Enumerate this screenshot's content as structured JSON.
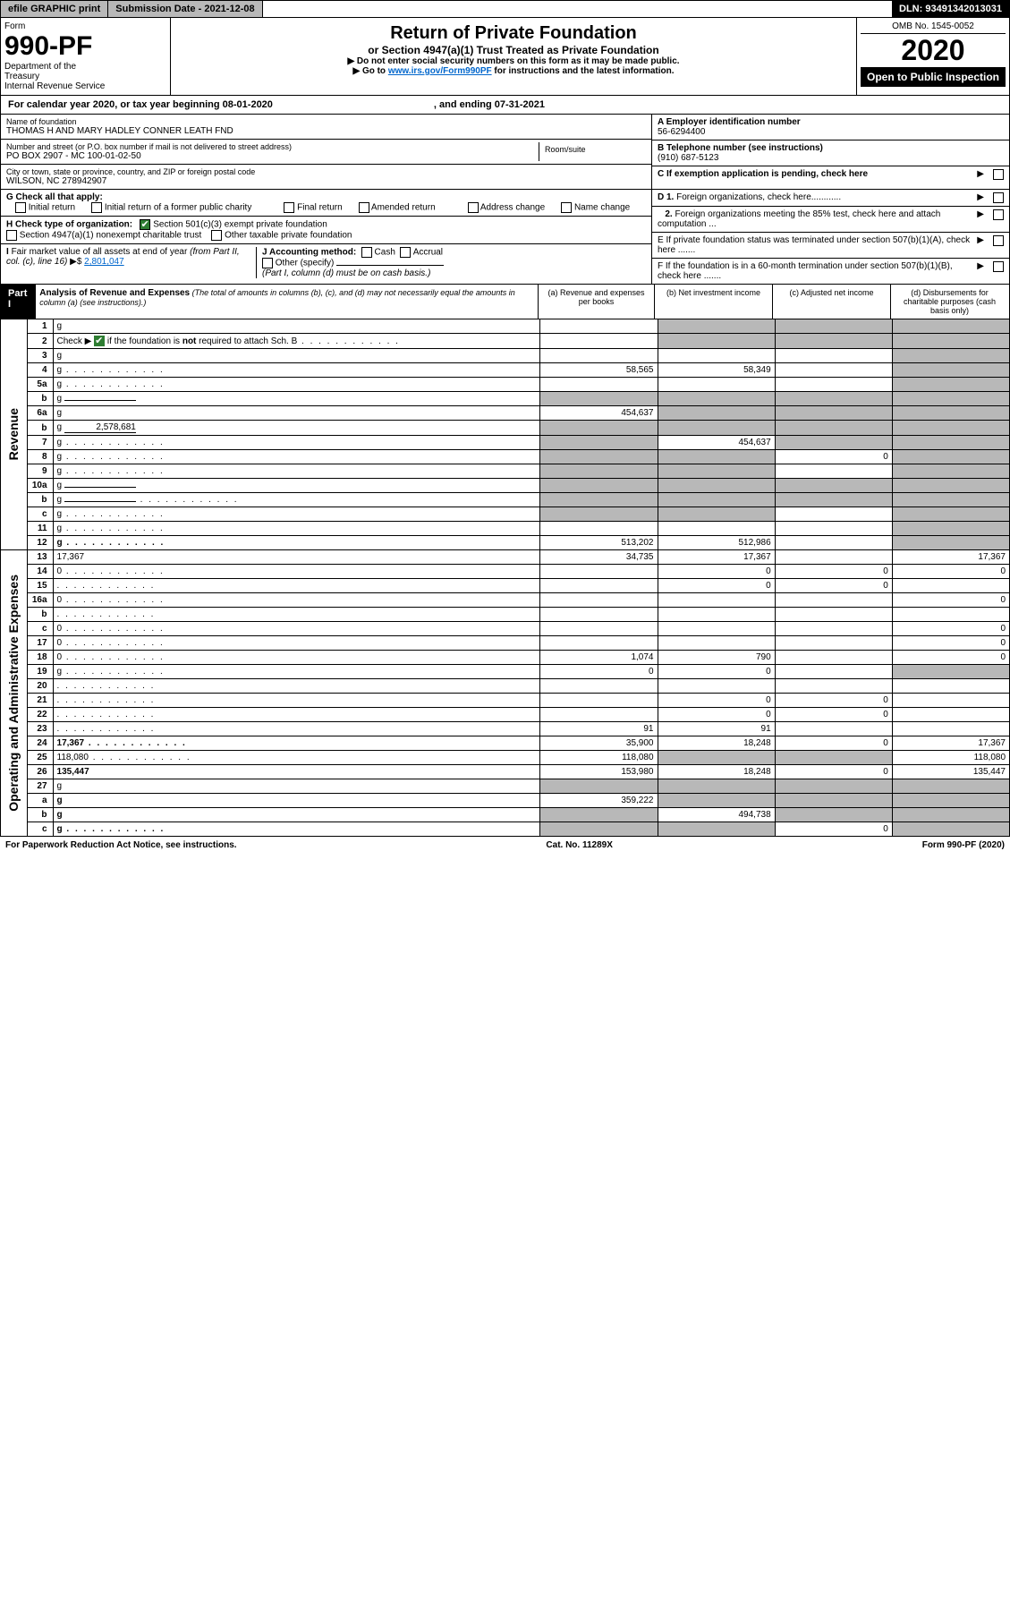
{
  "topbar": {
    "efile": "efile GRAPHIC print",
    "subdate_label": "Submission Date - ",
    "subdate": "2021-12-08",
    "dln": "DLN: 93491342013031"
  },
  "header": {
    "form": "Form",
    "formno": "990-PF",
    "dept": "Department of the Treasury\nInternal Revenue Service",
    "title": "Return of Private Foundation",
    "subtitle": "or Section 4947(a)(1) Trust Treated as Private Foundation",
    "note1": "▶ Do not enter social security numbers on this form as it may be made public.",
    "note2_pre": "▶ Go to ",
    "note2_link": "www.irs.gov/Form990PF",
    "note2_post": " for instructions and the latest information.",
    "omb": "OMB No. 1545-0052",
    "year": "2020",
    "open": "Open to Public Inspection"
  },
  "calyear": {
    "text": "For calendar year 2020, or tax year beginning 08-01-2020",
    "ending": ", and ending 07-31-2021"
  },
  "foundation": {
    "name_label": "Name of foundation",
    "name": "THOMAS H AND MARY HADLEY CONNER LEATH FND",
    "addr_label": "Number and street (or P.O. box number if mail is not delivered to street address)",
    "addr": "PO BOX 2907 - MC 100-01-02-50",
    "roomsuite": "Room/suite",
    "city_label": "City or town, state or province, country, and ZIP or foreign postal code",
    "city": "WILSON, NC  278942907",
    "ein_label": "A Employer identification number",
    "ein": "56-6294400",
    "phone_label": "B Telephone number (see instructions)",
    "phone": "(910) 687-5123",
    "exemption": "C If exemption application is pending, check here"
  },
  "G": {
    "label": "G Check all that apply:",
    "opts": [
      "Initial return",
      "Initial return of a former public charity",
      "Final return",
      "Amended return",
      "Address change",
      "Name change"
    ]
  },
  "H": {
    "label": "H Check type of organization:",
    "opt1": "Section 501(c)(3) exempt private foundation",
    "opt2": "Section 4947(a)(1) nonexempt charitable trust",
    "opt3": "Other taxable private foundation"
  },
  "I": {
    "label": "I Fair market value of all assets at end of year (from Part II, col. (c), line 16) ▶$ ",
    "value": "2,801,047"
  },
  "J": {
    "label": "J Accounting method:",
    "cash": "Cash",
    "accrual": "Accrual",
    "other": "Other (specify)",
    "note": "(Part I, column (d) must be on cash basis.)"
  },
  "D": {
    "d1": "D 1. Foreign organizations, check here............",
    "d2": "2. Foreign organizations meeting the 85% test, check here and attach computation ..."
  },
  "E": "E  If private foundation status was terminated under section 507(b)(1)(A), check here .......",
  "F": "F  If the foundation is in a 60-month termination under section 507(b)(1)(B), check here .......",
  "part1": {
    "label": "Part I",
    "title": "Analysis of Revenue and Expenses",
    "note": " (The total of amounts in columns (b), (c), and (d) may not necessarily equal the amounts in column (a) (see instructions).)",
    "cols": {
      "a": "(a)   Revenue and expenses per books",
      "b": "(b)   Net investment income",
      "c": "(c)   Adjusted net income",
      "d": "(d)   Disbursements for charitable purposes (cash basis only)"
    }
  },
  "sides": {
    "revenue": "Revenue",
    "expenses": "Operating and Administrative Expenses"
  },
  "rows": [
    {
      "n": "1",
      "d": "g",
      "a": "",
      "b": "g",
      "c": "g"
    },
    {
      "n": "2",
      "d": "g",
      "dots": true,
      "a": "",
      "b": "g",
      "c": "g",
      "greenCheck": true
    },
    {
      "n": "3",
      "d": "g",
      "a": "",
      "b": "",
      "c": ""
    },
    {
      "n": "4",
      "d": "g",
      "dots": true,
      "a": "58,565",
      "b": "58,349",
      "c": ""
    },
    {
      "n": "5a",
      "d": "g",
      "dots": true,
      "a": "",
      "b": "",
      "c": ""
    },
    {
      "n": "b",
      "d": "g",
      "inline": "",
      "a": "g",
      "b": "g",
      "c": "g"
    },
    {
      "n": "6a",
      "d": "g",
      "a": "454,637",
      "b": "g",
      "c": "g"
    },
    {
      "n": "b",
      "d": "g",
      "inline": "2,578,681",
      "a": "g",
      "b": "g",
      "c": "g"
    },
    {
      "n": "7",
      "d": "g",
      "dots": true,
      "a": "g",
      "b": "454,637",
      "c": "g"
    },
    {
      "n": "8",
      "d": "g",
      "dots": true,
      "a": "g",
      "b": "g",
      "c": "0"
    },
    {
      "n": "9",
      "d": "g",
      "dots": true,
      "a": "g",
      "b": "g",
      "c": ""
    },
    {
      "n": "10a",
      "d": "g",
      "inline": "",
      "a": "g",
      "b": "g",
      "c": "g"
    },
    {
      "n": "b",
      "d": "g",
      "dots": true,
      "inline": "",
      "a": "g",
      "b": "g",
      "c": "g"
    },
    {
      "n": "c",
      "d": "g",
      "dots": true,
      "a": "g",
      "b": "g",
      "c": ""
    },
    {
      "n": "11",
      "d": "g",
      "dots": true,
      "a": "",
      "b": "",
      "c": ""
    },
    {
      "n": "12",
      "d": "g",
      "dots": true,
      "bold": true,
      "a": "513,202",
      "b": "512,986",
      "c": ""
    }
  ],
  "exprows": [
    {
      "n": "13",
      "d": "17,367",
      "a": "34,735",
      "b": "17,367",
      "c": ""
    },
    {
      "n": "14",
      "d": "0",
      "dots": true,
      "a": "",
      "b": "0",
      "c": "0"
    },
    {
      "n": "15",
      "d": "",
      "dots": true,
      "a": "",
      "b": "0",
      "c": "0"
    },
    {
      "n": "16a",
      "d": "0",
      "dots": true,
      "a": "",
      "b": "",
      "c": ""
    },
    {
      "n": "b",
      "d": "",
      "dots": true,
      "a": "",
      "b": "",
      "c": ""
    },
    {
      "n": "c",
      "d": "0",
      "dots": true,
      "a": "",
      "b": "",
      "c": ""
    },
    {
      "n": "17",
      "d": "0",
      "dots": true,
      "a": "",
      "b": "",
      "c": ""
    },
    {
      "n": "18",
      "d": "0",
      "dots": true,
      "a": "1,074",
      "b": "790",
      "c": ""
    },
    {
      "n": "19",
      "d": "g",
      "dots": true,
      "a": "0",
      "b": "0",
      "c": ""
    },
    {
      "n": "20",
      "d": "",
      "dots": true,
      "a": "",
      "b": "",
      "c": ""
    },
    {
      "n": "21",
      "d": "",
      "dots": true,
      "a": "",
      "b": "0",
      "c": "0"
    },
    {
      "n": "22",
      "d": "",
      "dots": true,
      "a": "",
      "b": "0",
      "c": "0"
    },
    {
      "n": "23",
      "d": "",
      "dots": true,
      "a": "91",
      "b": "91",
      "c": ""
    },
    {
      "n": "24",
      "d": "17,367",
      "dots": true,
      "bold": true,
      "a": "35,900",
      "b": "18,248",
      "c": "0"
    },
    {
      "n": "25",
      "d": "118,080",
      "dots": true,
      "a": "118,080",
      "b": "g",
      "c": "g"
    },
    {
      "n": "26",
      "d": "135,447",
      "bold": true,
      "a": "153,980",
      "b": "18,248",
      "c": "0"
    },
    {
      "n": "27",
      "d": "g",
      "a": "g",
      "b": "g",
      "c": "g"
    },
    {
      "n": "a",
      "d": "g",
      "bold": true,
      "a": "359,222",
      "b": "g",
      "c": "g"
    },
    {
      "n": "b",
      "d": "g",
      "bold": true,
      "a": "g",
      "b": "494,738",
      "c": "g"
    },
    {
      "n": "c",
      "d": "g",
      "dots": true,
      "bold": true,
      "a": "g",
      "b": "g",
      "c": "0"
    }
  ],
  "footer": {
    "left": "For Paperwork Reduction Act Notice, see instructions.",
    "mid": "Cat. No. 11289X",
    "right": "Form 990-PF (2020)"
  }
}
